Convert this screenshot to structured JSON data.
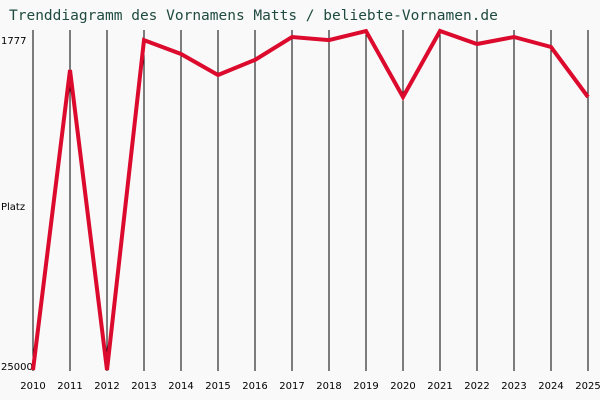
{
  "title": "Trenddiagramm des Vornamens Matts / beliebte-Vornamen.de",
  "colors": {
    "line": "#dc0a2d",
    "grid": "#000000",
    "title": "#1f4a3f",
    "background": "#f9f9f9"
  },
  "y_axis": {
    "top_label": "1777",
    "mid_label": "Platz",
    "bottom_label": "25000"
  },
  "chart_data": {
    "type": "line",
    "title": "Trenddiagramm des Vornamens Matts / beliebte-Vornamen.de",
    "xlabel": "",
    "ylabel": "Platz",
    "ylim": [
      25000,
      1777
    ],
    "y_inverted": true,
    "grid": "vertical",
    "legend": null,
    "categories": [
      "2010",
      "2011",
      "2012",
      "2013",
      "2014",
      "2015",
      "2016",
      "2017",
      "2018",
      "2019",
      "2020",
      "2021",
      "2022",
      "2023",
      "2024",
      "2025"
    ],
    "series": [
      {
        "name": "Matts",
        "values": [
          25000,
          4450,
          25000,
          2400,
          3350,
          4790,
          3760,
          2190,
          2400,
          1780,
          6300,
          1777,
          2670,
          2190,
          2870,
          6300
        ]
      }
    ]
  }
}
